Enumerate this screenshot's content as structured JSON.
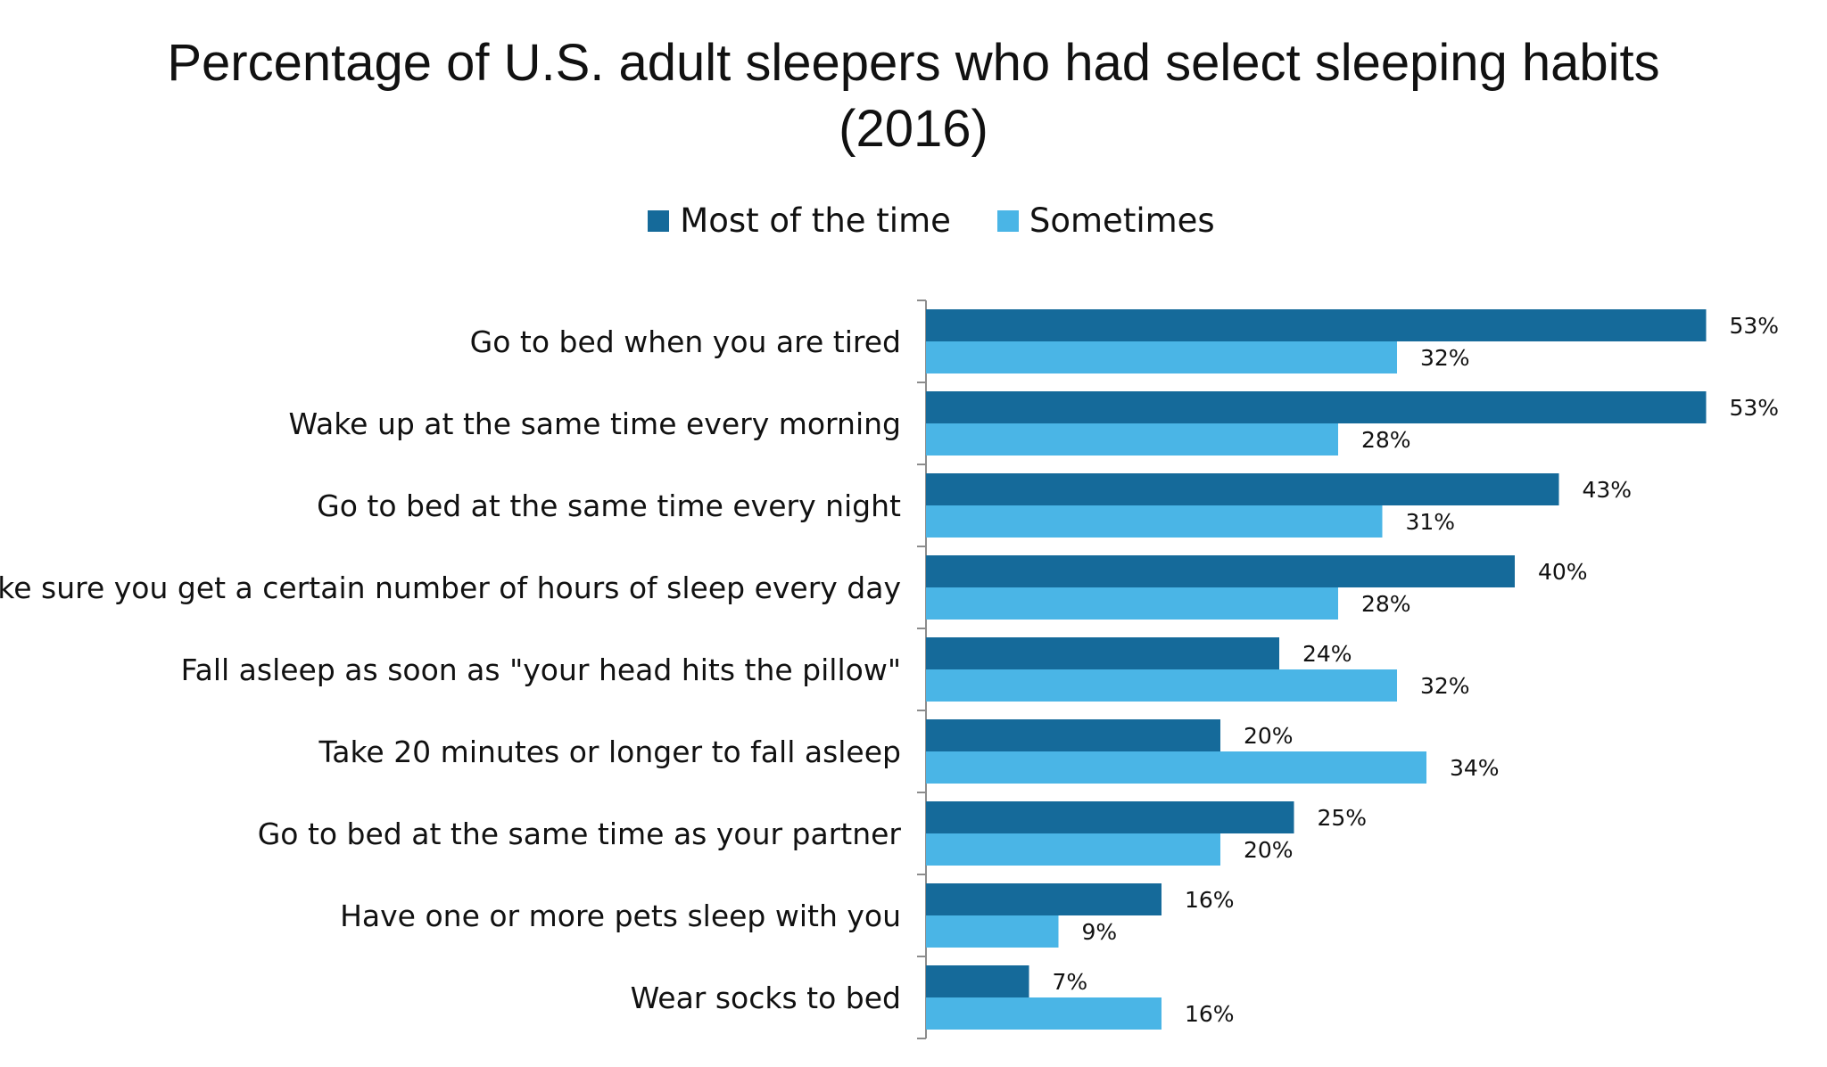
{
  "chart_data": {
    "type": "bar",
    "orientation": "horizontal",
    "title": "Percentage of U.S. adult sleepers who had select sleeping habits (2016)",
    "categories": [
      "Go to bed when you are tired",
      "Wake up at the same time every morning",
      "Go to bed at the same time every night",
      "Make sure you get a certain number of hours of sleep every day",
      "Fall asleep as soon as \"your head hits the pillow\"",
      "Take 20 minutes or longer to fall asleep",
      "Go to bed at the same time as your partner",
      "Have one or more pets sleep with you",
      "Wear socks to bed"
    ],
    "series": [
      {
        "name": "Most of the time",
        "color": "#156a9a",
        "values": [
          53,
          53,
          43,
          40,
          24,
          20,
          25,
          16,
          7
        ],
        "labels": [
          "53%",
          "53%",
          "43%",
          "40%",
          "24%",
          "20%",
          "25%",
          "16%",
          "7%"
        ]
      },
      {
        "name": "Sometimes",
        "color": "#4ab5e6",
        "values": [
          32,
          28,
          31,
          28,
          32,
          34,
          20,
          9,
          16
        ],
        "labels": [
          "32%",
          "28%",
          "31%",
          "28%",
          "32%",
          "34%",
          "20%",
          "9%",
          "16%"
        ]
      }
    ],
    "unit": "%",
    "xlim": [
      0,
      53
    ],
    "legend_position": "top",
    "grid": false
  }
}
